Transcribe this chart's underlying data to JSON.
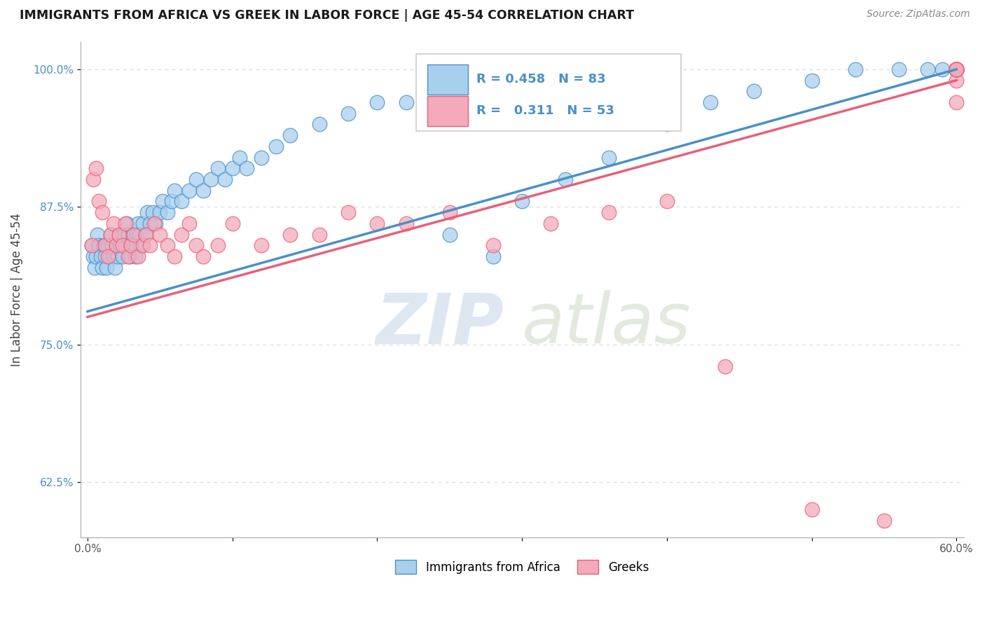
{
  "title": "IMMIGRANTS FROM AFRICA VS GREEK IN LABOR FORCE | AGE 45-54 CORRELATION CHART",
  "source": "Source: ZipAtlas.com",
  "ylabel": "In Labor Force | Age 45-54",
  "xlim": [
    -0.005,
    0.605
  ],
  "ylim": [
    0.575,
    1.025
  ],
  "xticks": [
    0.0,
    0.1,
    0.2,
    0.3,
    0.4,
    0.5,
    0.6
  ],
  "xticklabels": [
    "0.0%",
    "",
    "",
    "",
    "",
    "",
    "60.0%"
  ],
  "yticks": [
    0.625,
    0.75,
    0.875,
    1.0
  ],
  "yticklabels": [
    "62.5%",
    "75.0%",
    "87.5%",
    "100.0%"
  ],
  "legend_label1": "Immigrants from Africa",
  "legend_label2": "Greeks",
  "r1": 0.458,
  "n1": 83,
  "r2": 0.311,
  "n2": 53,
  "color_blue": "#A8CFEE",
  "color_pink": "#F4AABB",
  "trend_color_blue": "#4A90C8",
  "trend_color_pink": "#E8607A",
  "blue_x": [
    0.003,
    0.004,
    0.005,
    0.006,
    0.007,
    0.008,
    0.009,
    0.01,
    0.011,
    0.012,
    0.013,
    0.014,
    0.015,
    0.016,
    0.017,
    0.018,
    0.019,
    0.02,
    0.021,
    0.022,
    0.023,
    0.024,
    0.025,
    0.026,
    0.027,
    0.028,
    0.029,
    0.03,
    0.031,
    0.032,
    0.033,
    0.034,
    0.035,
    0.036,
    0.037,
    0.038,
    0.04,
    0.041,
    0.043,
    0.045,
    0.047,
    0.05,
    0.052,
    0.055,
    0.058,
    0.06,
    0.065,
    0.07,
    0.075,
    0.08,
    0.085,
    0.09,
    0.095,
    0.1,
    0.105,
    0.11,
    0.12,
    0.13,
    0.14,
    0.16,
    0.18,
    0.2,
    0.22,
    0.25,
    0.28,
    0.3,
    0.33,
    0.36,
    0.4,
    0.43,
    0.46,
    0.5,
    0.53,
    0.56,
    0.58,
    0.59,
    0.6,
    0.6,
    0.6,
    0.6,
    0.6,
    0.6,
    0.6
  ],
  "blue_y": [
    0.84,
    0.83,
    0.82,
    0.83,
    0.85,
    0.84,
    0.83,
    0.82,
    0.84,
    0.83,
    0.82,
    0.84,
    0.83,
    0.85,
    0.84,
    0.83,
    0.82,
    0.84,
    0.83,
    0.85,
    0.84,
    0.83,
    0.85,
    0.84,
    0.86,
    0.85,
    0.83,
    0.84,
    0.85,
    0.84,
    0.83,
    0.85,
    0.86,
    0.85,
    0.84,
    0.86,
    0.85,
    0.87,
    0.86,
    0.87,
    0.86,
    0.87,
    0.88,
    0.87,
    0.88,
    0.89,
    0.88,
    0.89,
    0.9,
    0.89,
    0.9,
    0.91,
    0.9,
    0.91,
    0.92,
    0.91,
    0.92,
    0.93,
    0.94,
    0.95,
    0.96,
    0.97,
    0.97,
    0.85,
    0.83,
    0.88,
    0.9,
    0.92,
    0.95,
    0.97,
    0.98,
    0.99,
    1.0,
    1.0,
    1.0,
    1.0,
    1.0,
    1.0,
    1.0,
    1.0,
    1.0,
    1.0,
    1.0
  ],
  "pink_x": [
    0.003,
    0.004,
    0.006,
    0.008,
    0.01,
    0.012,
    0.014,
    0.016,
    0.018,
    0.02,
    0.022,
    0.024,
    0.026,
    0.028,
    0.03,
    0.032,
    0.035,
    0.038,
    0.04,
    0.043,
    0.046,
    0.05,
    0.055,
    0.06,
    0.065,
    0.07,
    0.075,
    0.08,
    0.09,
    0.1,
    0.12,
    0.14,
    0.16,
    0.18,
    0.2,
    0.22,
    0.25,
    0.28,
    0.32,
    0.36,
    0.4,
    0.44,
    0.5,
    0.55,
    0.6,
    0.6,
    0.6,
    0.6,
    0.6,
    0.6,
    0.6,
    0.6,
    0.6
  ],
  "pink_y": [
    0.84,
    0.9,
    0.91,
    0.88,
    0.87,
    0.84,
    0.83,
    0.85,
    0.86,
    0.84,
    0.85,
    0.84,
    0.86,
    0.83,
    0.84,
    0.85,
    0.83,
    0.84,
    0.85,
    0.84,
    0.86,
    0.85,
    0.84,
    0.83,
    0.85,
    0.86,
    0.84,
    0.83,
    0.84,
    0.86,
    0.84,
    0.85,
    0.85,
    0.87,
    0.86,
    0.86,
    0.87,
    0.84,
    0.86,
    0.87,
    0.88,
    0.73,
    0.6,
    0.59,
    0.97,
    0.99,
    1.0,
    1.0,
    1.0,
    1.0,
    1.0,
    1.0,
    1.0
  ],
  "watermark_zip": "ZIP",
  "watermark_atlas": "atlas",
  "background_color": "#FFFFFF",
  "grid_color": "#DDDDDD",
  "blue_trend_y0": 0.78,
  "blue_trend_y1": 1.0,
  "pink_trend_y0": 0.775,
  "pink_trend_y1": 0.99
}
